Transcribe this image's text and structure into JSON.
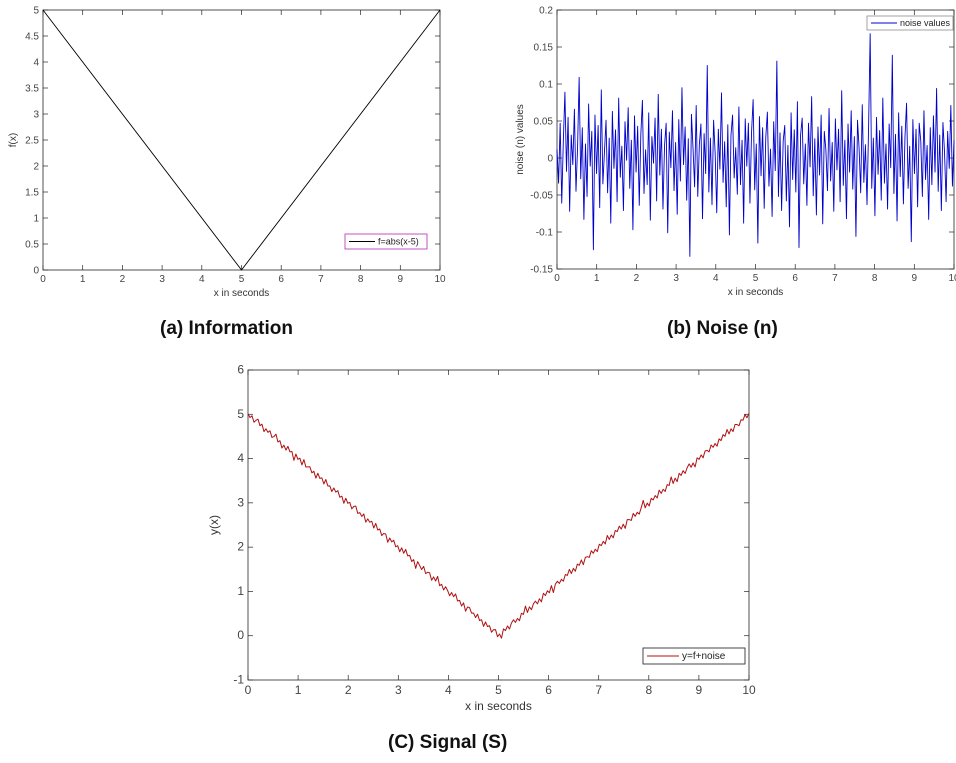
{
  "captions": {
    "a": "(a) Information",
    "b": "(b) Noise (n)",
    "c": "(C) Signal (S)"
  },
  "chart_data": [
    {
      "id": "information",
      "type": "line",
      "xlabel": "x in seconds",
      "ylabel": "f(x)",
      "xlim": [
        0,
        10
      ],
      "ylim": [
        0,
        5
      ],
      "xticks": [
        "0",
        "1",
        "2",
        "3",
        "4",
        "5",
        "6",
        "7",
        "8",
        "9",
        "10"
      ],
      "yticks": [
        "0",
        "0.5",
        "1",
        "1.5",
        "2",
        "2.5",
        "3",
        "3.5",
        "4",
        "4.5",
        "5"
      ],
      "legend": {
        "label": "f=abs(x-5)",
        "placement": "bottom-right"
      },
      "series": [
        {
          "name": "f=abs(x-5)",
          "color": "#000000",
          "x": [
            0,
            5,
            10
          ],
          "y": [
            5,
            0,
            5
          ]
        }
      ]
    },
    {
      "id": "noise",
      "type": "line",
      "xlabel": "x in seconds",
      "ylabel": "noise (n) values",
      "xlim": [
        0,
        10
      ],
      "ylim": [
        -0.15,
        0.2
      ],
      "xticks": [
        "0",
        "1",
        "2",
        "3",
        "4",
        "5",
        "6",
        "7",
        "8",
        "9",
        "10"
      ],
      "yticks": [
        "-0.15",
        "-0.1",
        "-0.05",
        "0",
        "0.05",
        "0.1",
        "0.15",
        "0.2"
      ],
      "legend": {
        "label": "noise values",
        "placement": "top-right"
      },
      "series": [
        {
          "name": "noise values",
          "color": "#0000cc",
          "x_step": 0.025,
          "y": [
            0.012,
            -0.034,
            0.047,
            -0.061,
            0.023,
            0.089,
            -0.018,
            0.055,
            -0.072,
            0.031,
            -0.009,
            0.066,
            -0.045,
            0.014,
            0.109,
            -0.028,
            0.041,
            -0.083,
            0.019,
            -0.052,
            0.073,
            -0.011,
            0.036,
            -0.124,
            0.058,
            -0.021,
            0.044,
            -0.067,
            0.092,
            -0.035,
            0.008,
            0.051,
            -0.047,
            0.027,
            -0.088,
            0.063,
            -0.014,
            0.038,
            -0.059,
            0.081,
            -0.026,
            0.016,
            -0.071,
            0.049,
            -0.003,
            0.068,
            -0.041,
            0.024,
            -0.097,
            0.057,
            -0.019,
            0.043,
            -0.064,
            0.032,
            0.078,
            -0.048,
            0.011,
            -0.036,
            0.061,
            -0.084,
            0.029,
            -0.007,
            0.054,
            -0.058,
            0.086,
            -0.023,
            0.039,
            -0.069,
            0.017,
            0.047,
            -0.101,
            0.035,
            -0.013,
            0.064,
            -0.044,
            0.021,
            -0.076,
            0.052,
            -0.031,
            0.095,
            -0.009,
            0.042,
            -0.057,
            0.026,
            -0.133,
            0.059,
            0.013,
            -0.039,
            0.071,
            -0.052,
            0.018,
            0.046,
            -0.082,
            0.033,
            -0.021,
            0.125,
            -0.046,
            0.027,
            -0.063,
            0.051,
            0.006,
            -0.074,
            0.039,
            -0.015,
            0.088,
            -0.033,
            0.022,
            -0.066,
            0.045,
            -0.104,
            0.031,
            0.058,
            -0.027,
            0.014,
            -0.049,
            0.069,
            -0.036,
            0.024,
            -0.088,
            0.053,
            -0.011,
            0.047,
            -0.061,
            0.035,
            0.079,
            -0.043,
            0.019,
            -0.115,
            0.056,
            -0.024,
            0.041,
            -0.068,
            0.028,
            0.062,
            -0.038,
            0.012,
            -0.079,
            0.049,
            -0.017,
            0.131,
            -0.052,
            0.034,
            -0.071,
            0.023,
            0.044,
            -0.058,
            0.017,
            -0.093,
            0.061,
            -0.029,
            0.038,
            -0.046,
            0.076,
            -0.121,
            0.031,
            0.054,
            -0.035,
            0.019,
            -0.064,
            0.047,
            -0.012,
            0.083,
            -0.051,
            0.026,
            -0.077,
            0.042,
            -0.023,
            0.058,
            -0.089,
            0.036,
            0.011,
            -0.044,
            0.067,
            -0.031,
            0.021,
            -0.072,
            0.053,
            -0.016,
            0.039,
            -0.059,
            0.091,
            -0.037,
            0.024,
            -0.082,
            0.046,
            -0.019,
            0.064,
            -0.042,
            0.029,
            -0.106,
            0.051,
            0.013,
            -0.047,
            0.072,
            -0.033,
            0.018,
            -0.063,
            0.042,
            0.168,
            -0.041,
            0.027,
            -0.078,
            0.055,
            -0.022,
            0.037,
            -0.057,
            0.081,
            -0.034,
            0.019,
            -0.069,
            0.046,
            -0.013,
            0.139,
            -0.048,
            0.032,
            -0.085,
            0.061,
            -0.025,
            0.043,
            -0.062,
            0.028,
            0.074,
            -0.041,
            0.016,
            -0.113,
            0.052,
            -0.021,
            0.039,
            -0.066,
            0.047,
            0.023,
            -0.052,
            0.064,
            -0.029,
            0.017,
            -0.083,
            0.041,
            -0.036,
            0.057,
            -0.019,
            0.094,
            -0.045,
            0.031,
            -0.071,
            0.048,
            0.008,
            -0.059,
            0.036,
            -0.014,
            0.071,
            -0.038,
            0.024
          ]
        }
      ]
    },
    {
      "id": "signal",
      "type": "line",
      "xlabel": "x in seconds",
      "ylabel": "y(x)",
      "xlim": [
        0,
        10
      ],
      "ylim": [
        -1,
        6
      ],
      "xticks": [
        "0",
        "1",
        "2",
        "3",
        "4",
        "5",
        "6",
        "7",
        "8",
        "9",
        "10"
      ],
      "yticks": [
        "-1",
        "0",
        "1",
        "2",
        "3",
        "4",
        "5",
        "6"
      ],
      "legend": {
        "label": "y=f+noise",
        "placement": "bottom-right"
      },
      "series": [
        {
          "name": "y=f+noise",
          "color": "#b01010",
          "formula_note": ""
        }
      ]
    }
  ]
}
